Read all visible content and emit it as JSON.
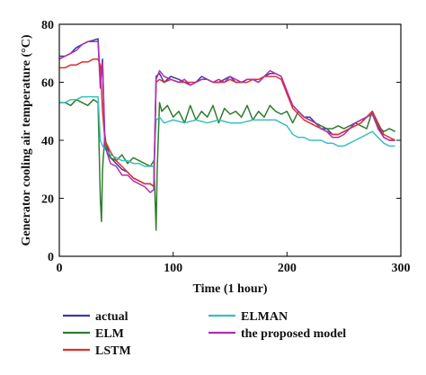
{
  "chart_data": {
    "type": "line",
    "title": "",
    "xlabel": "Time (1 hour)",
    "ylabel": "Generator cooling air temperature (°C)",
    "xlim": [
      0,
      300
    ],
    "ylim": [
      0,
      80
    ],
    "xticks": [
      "0",
      "100",
      "200",
      "300"
    ],
    "yticks": [
      "0",
      "20",
      "40",
      "60",
      "80"
    ],
    "grid": false,
    "legend_position": "bottom",
    "series": [
      {
        "name": "actual",
        "color": "#3a3aa8",
        "x": [
          0,
          5,
          10,
          15,
          20,
          25,
          30,
          34,
          36,
          38,
          40,
          45,
          50,
          55,
          60,
          65,
          70,
          75,
          80,
          83,
          85,
          88,
          92,
          98,
          105,
          110,
          115,
          120,
          125,
          130,
          135,
          140,
          145,
          150,
          155,
          160,
          165,
          170,
          175,
          180,
          185,
          190,
          195,
          200,
          205,
          210,
          215,
          220,
          225,
          230,
          235,
          240,
          245,
          250,
          255,
          260,
          265,
          270,
          275,
          280,
          285,
          290,
          295
        ],
        "y": [
          69,
          69,
          70,
          72,
          73,
          74,
          74.5,
          75,
          60,
          68,
          40,
          34,
          32,
          30,
          29,
          27,
          26,
          25,
          25,
          24,
          62,
          63,
          60,
          62,
          61,
          60,
          59,
          60,
          62,
          61,
          60,
          60,
          61,
          62,
          60,
          60,
          61,
          61,
          60,
          62,
          63,
          63,
          62,
          56,
          52,
          50,
          48,
          48,
          46,
          44,
          44,
          42,
          42,
          43,
          44,
          46,
          47,
          48,
          50,
          45,
          41,
          40,
          40
        ]
      },
      {
        "name": "ELM",
        "color": "#2f7d2f",
        "x": [
          0,
          5,
          10,
          15,
          20,
          25,
          30,
          34,
          36,
          37,
          38,
          40,
          42,
          45,
          50,
          55,
          60,
          65,
          70,
          75,
          80,
          83,
          85,
          86,
          88,
          90,
          95,
          100,
          105,
          110,
          115,
          120,
          125,
          130,
          135,
          140,
          145,
          150,
          155,
          160,
          165,
          170,
          175,
          180,
          185,
          190,
          195,
          200,
          205,
          210,
          215,
          220,
          225,
          230,
          235,
          240,
          245,
          250,
          255,
          260,
          265,
          270,
          275,
          280,
          285,
          290,
          295
        ],
        "y": [
          53,
          53,
          52,
          54,
          53,
          52,
          54,
          53,
          20,
          12,
          30,
          42,
          36,
          34,
          33,
          35,
          32,
          34,
          33,
          32,
          31,
          33,
          9,
          30,
          53,
          50,
          52,
          48,
          50,
          46,
          52,
          47,
          50,
          48,
          52,
          46,
          51,
          49,
          50,
          48,
          52,
          47,
          50,
          48,
          52,
          50,
          49,
          50,
          46,
          50,
          48,
          47,
          46,
          45,
          44,
          44,
          45,
          44,
          45,
          46,
          45,
          44,
          50,
          45,
          43,
          44,
          43
        ]
      },
      {
        "name": "LSTM",
        "color": "#e0302a",
        "x": [
          0,
          5,
          10,
          15,
          20,
          25,
          30,
          34,
          36,
          38,
          40,
          45,
          50,
          55,
          60,
          65,
          70,
          75,
          80,
          83,
          85,
          88,
          92,
          98,
          105,
          110,
          115,
          120,
          125,
          130,
          135,
          140,
          145,
          150,
          155,
          160,
          165,
          170,
          175,
          180,
          185,
          190,
          195,
          200,
          205,
          210,
          215,
          220,
          225,
          230,
          235,
          240,
          245,
          250,
          255,
          260,
          265,
          270,
          275,
          280,
          285,
          290,
          295
        ],
        "y": [
          65,
          65,
          66,
          66,
          67,
          67,
          68,
          68,
          66,
          50,
          40,
          36,
          33,
          31,
          29,
          27,
          26,
          25,
          25,
          24,
          60,
          61,
          60,
          61,
          60,
          60,
          60,
          60,
          61,
          61,
          60,
          60,
          60,
          61,
          60,
          60,
          60,
          61,
          61,
          62,
          62,
          62,
          61,
          56,
          51,
          49,
          47,
          46,
          45,
          44,
          43,
          42,
          42,
          43,
          44,
          45,
          46,
          48,
          50,
          46,
          42,
          41,
          40
        ]
      },
      {
        "name": "ELMAN",
        "color": "#3bbfbf",
        "x": [
          0,
          5,
          10,
          15,
          20,
          25,
          30,
          34,
          36,
          38,
          40,
          45,
          50,
          55,
          60,
          65,
          70,
          75,
          80,
          83,
          85,
          88,
          92,
          100,
          110,
          120,
          130,
          140,
          150,
          160,
          170,
          180,
          190,
          200,
          205,
          210,
          215,
          220,
          225,
          230,
          235,
          240,
          245,
          250,
          255,
          260,
          265,
          270,
          275,
          280,
          285,
          290,
          295
        ],
        "y": [
          53,
          53,
          54,
          54,
          55,
          55,
          55,
          55,
          40,
          38,
          37,
          35,
          34,
          33,
          33,
          32,
          32,
          31,
          31,
          31,
          47,
          48,
          46,
          47,
          46,
          47,
          46,
          47,
          46,
          46,
          47,
          47,
          47,
          45,
          42,
          41,
          41,
          40,
          40,
          40,
          39,
          39,
          38,
          38,
          39,
          40,
          41,
          42,
          43,
          41,
          39,
          38,
          38
        ]
      },
      {
        "name": "the proposed model",
        "color": "#b030b0",
        "x": [
          0,
          5,
          10,
          15,
          20,
          25,
          30,
          34,
          36,
          38,
          40,
          45,
          50,
          55,
          60,
          65,
          70,
          75,
          80,
          83,
          85,
          88,
          92,
          98,
          105,
          110,
          115,
          120,
          125,
          130,
          135,
          140,
          145,
          150,
          155,
          160,
          165,
          170,
          175,
          180,
          185,
          190,
          195,
          200,
          205,
          210,
          215,
          220,
          225,
          230,
          235,
          240,
          245,
          250,
          255,
          260,
          265,
          270,
          275,
          280,
          285,
          290,
          295
        ],
        "y": [
          68,
          69,
          70,
          71,
          73,
          74,
          74,
          74,
          58,
          67,
          38,
          32,
          31,
          28,
          28,
          26,
          25,
          24,
          22,
          23,
          61,
          64,
          62,
          61,
          60,
          61,
          59,
          60,
          61,
          61,
          60,
          61,
          60,
          62,
          61,
          60,
          61,
          61,
          60,
          62,
          64,
          63,
          62,
          57,
          52,
          50,
          48,
          47,
          46,
          44,
          43,
          41,
          41,
          42,
          44,
          46,
          47,
          48,
          49,
          44,
          41,
          40,
          40
        ]
      }
    ]
  }
}
